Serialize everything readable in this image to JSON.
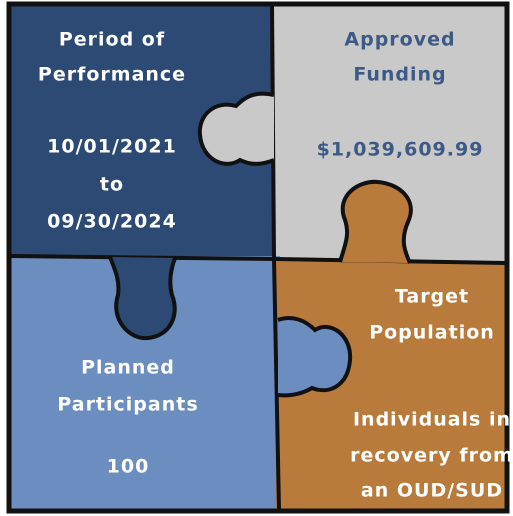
{
  "pieces": [
    {
      "title": [
        "Period of",
        "Performance"
      ],
      "value": [
        "10/01/2021",
        "to",
        "09/30/2024"
      ]
    },
    {
      "title": [
        "Approved",
        "Funding"
      ],
      "value": [
        "$1,039,609.99"
      ]
    },
    {
      "title": [
        "Planned",
        "Participants"
      ],
      "value": [
        "100"
      ]
    },
    {
      "title": [
        "Target",
        "Population"
      ],
      "value": [
        "Individuals in",
        "recovery from",
        "an OUD/SUD"
      ]
    }
  ]
}
